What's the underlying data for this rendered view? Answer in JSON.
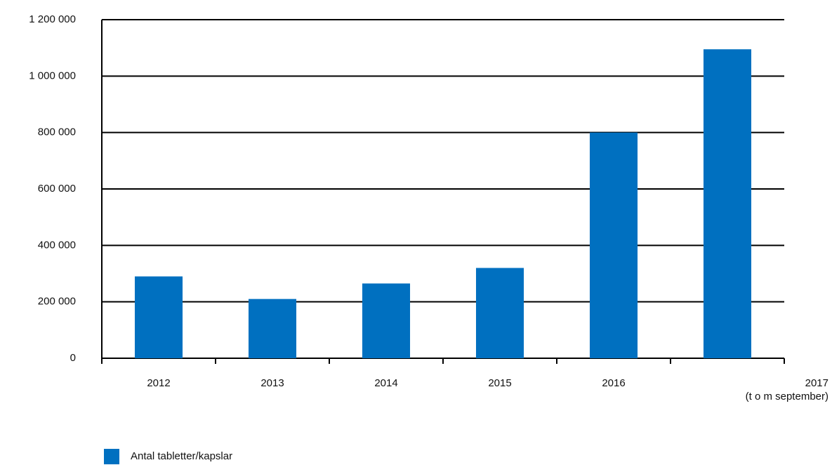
{
  "chart_data": {
    "type": "bar",
    "categories": [
      "2012",
      "2013",
      "2014",
      "2015",
      "2016",
      "2017\n(t o m september)"
    ],
    "series": [
      {
        "name": "Antal tabletter/kapslar",
        "color": "#0070c0",
        "values": [
          290000,
          210000,
          265000,
          320000,
          800000,
          1095000
        ]
      }
    ],
    "ylim": [
      0,
      1200000
    ],
    "yticks": [
      0,
      {
        "value": 200000,
        "label": "200 000"
      },
      {
        "value": 400000,
        "label": "400 000"
      },
      {
        "value": 600000,
        "label": "600 000"
      },
      {
        "value": 800000,
        "label": "800 000"
      },
      {
        "value": 1000000,
        "label": "1 000 000"
      },
      {
        "value": 1200000,
        "label": "1 200 000"
      }
    ],
    "grid": true,
    "legend": "bottom-left"
  }
}
